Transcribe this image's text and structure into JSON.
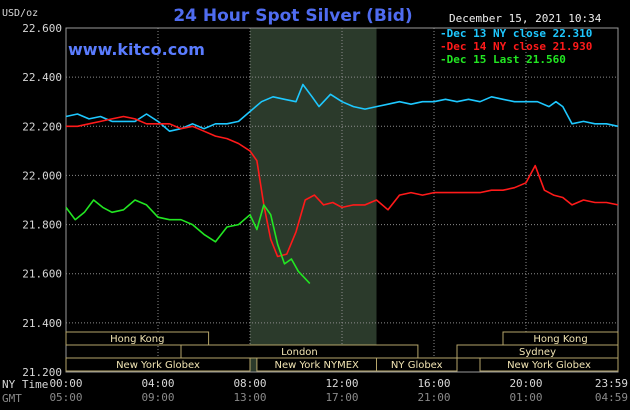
{
  "header": {
    "title": "24 Hour Spot Silver (Bid)",
    "datestamp": "December 15, 2021 10:34",
    "brand": "www.kitco.com",
    "unit": "USD/oz"
  },
  "time_axis": {
    "ny_label": "NY Time",
    "gmt_label": "GMT",
    "ny_ticks": [
      "00:00",
      "04:00",
      "08:00",
      "12:00",
      "16:00",
      "20:00",
      "23:59"
    ],
    "gmt_ticks": [
      "05:00",
      "09:00",
      "13:00",
      "17:00",
      "21:00",
      "01:00",
      "04:59"
    ]
  },
  "sessions": [
    {
      "label": "Hong Kong",
      "start": 0,
      "end": 6.2,
      "row": 0
    },
    {
      "label": "London",
      "start": 5,
      "end": 15.3,
      "row": 1
    },
    {
      "label": "New York Globex",
      "start": 0,
      "end": 8,
      "row": 2
    },
    {
      "label": "New York NYMEX",
      "start": 8.3,
      "end": 13.5,
      "row": 2
    },
    {
      "label": "NY Globex",
      "start": 13.5,
      "end": 17,
      "row": 2
    },
    {
      "label": "Hong Kong",
      "start": 19,
      "end": 24,
      "row": 0
    },
    {
      "label": "Sydney",
      "start": 17,
      "end": 24,
      "row": 1
    },
    {
      "label": "New York Globex",
      "start": 18,
      "end": 24,
      "row": 2
    }
  ],
  "colors": {
    "background": "#000000",
    "grid": "#8c8c8c",
    "highlight": "#2b3a2b",
    "session_border": "#b5a56a",
    "dec13": "#1ec8ff",
    "dec14": "#ff1a1a",
    "dec15": "#22e622"
  },
  "chart_data": {
    "type": "line",
    "title": "24 Hour Spot Silver (Bid)",
    "ylabel": "USD/oz",
    "xlabel": "NY Time",
    "ylim": [
      21.2,
      22.6
    ],
    "xlim": [
      0,
      24
    ],
    "y_ticks": [
      "22.600",
      "22.400",
      "22.200",
      "22.000",
      "21.800",
      "21.600",
      "21.400",
      "21.200"
    ],
    "grid": true,
    "highlight_hours": [
      8.0,
      13.5
    ],
    "legend_position": "top-right",
    "series": [
      {
        "name": "Dec 13 NY close 22.310",
        "color": "#1ec8ff",
        "x": [
          0,
          0.5,
          1,
          1.5,
          2,
          2.5,
          3,
          3.5,
          4,
          4.5,
          5,
          5.5,
          6,
          6.5,
          7,
          7.5,
          8,
          8.5,
          9,
          9.5,
          10,
          10.3,
          10.7,
          11,
          11.5,
          12,
          12.5,
          13,
          13.5,
          14,
          14.5,
          15,
          15.5,
          16,
          16.5,
          17,
          17.5,
          18,
          18.5,
          19,
          19.5,
          20,
          20.5,
          21,
          21.3,
          21.6,
          22,
          22.5,
          23,
          23.5,
          24
        ],
        "y": [
          22.24,
          22.25,
          22.23,
          22.24,
          22.22,
          22.22,
          22.22,
          22.25,
          22.22,
          22.18,
          22.19,
          22.21,
          22.19,
          22.21,
          22.21,
          22.22,
          22.26,
          22.3,
          22.32,
          22.31,
          22.3,
          22.37,
          22.32,
          22.28,
          22.33,
          22.3,
          22.28,
          22.27,
          22.28,
          22.29,
          22.3,
          22.29,
          22.3,
          22.3,
          22.31,
          22.3,
          22.31,
          22.3,
          22.32,
          22.31,
          22.3,
          22.3,
          22.3,
          22.28,
          22.3,
          22.28,
          22.21,
          22.22,
          22.21,
          22.21,
          22.2
        ]
      },
      {
        "name": "Dec 14 NY close 21.930",
        "color": "#ff1a1a",
        "x": [
          0,
          0.5,
          1,
          1.5,
          2,
          2.5,
          3,
          3.5,
          4,
          4.5,
          5,
          5.5,
          6,
          6.5,
          7,
          7.5,
          8,
          8.3,
          8.6,
          8.9,
          9.2,
          9.6,
          10,
          10.4,
          10.8,
          11.2,
          11.6,
          12,
          12.5,
          13,
          13.5,
          14,
          14.5,
          15,
          15.5,
          16,
          16.5,
          17,
          17.5,
          18,
          18.5,
          19,
          19.5,
          20,
          20.4,
          20.8,
          21.2,
          21.6,
          22,
          22.5,
          23,
          23.5,
          24
        ],
        "y": [
          22.2,
          22.2,
          22.21,
          22.22,
          22.23,
          22.24,
          22.23,
          22.21,
          22.21,
          22.21,
          22.19,
          22.2,
          22.18,
          22.16,
          22.15,
          22.13,
          22.1,
          22.06,
          21.88,
          21.74,
          21.67,
          21.68,
          21.77,
          21.9,
          21.92,
          21.88,
          21.89,
          21.87,
          21.88,
          21.88,
          21.9,
          21.86,
          21.92,
          21.93,
          21.92,
          21.93,
          21.93,
          21.93,
          21.93,
          21.93,
          21.94,
          21.94,
          21.95,
          21.97,
          22.04,
          21.94,
          21.92,
          21.91,
          21.88,
          21.9,
          21.89,
          21.89,
          21.88
        ]
      },
      {
        "name": "Dec 15 Last 21.560",
        "color": "#22e622",
        "x": [
          0,
          0.4,
          0.8,
          1.2,
          1.6,
          2,
          2.5,
          3,
          3.5,
          4,
          4.5,
          5,
          5.5,
          6,
          6.5,
          7,
          7.5,
          8,
          8.3,
          8.6,
          8.9,
          9.2,
          9.5,
          9.8,
          10.1,
          10.4,
          10.6
        ],
        "y": [
          21.87,
          21.82,
          21.85,
          21.9,
          21.87,
          21.85,
          21.86,
          21.9,
          21.88,
          21.83,
          21.82,
          21.82,
          21.8,
          21.76,
          21.73,
          21.79,
          21.8,
          21.84,
          21.78,
          21.88,
          21.84,
          21.72,
          21.64,
          21.66,
          21.61,
          21.58,
          21.56
        ]
      }
    ]
  }
}
